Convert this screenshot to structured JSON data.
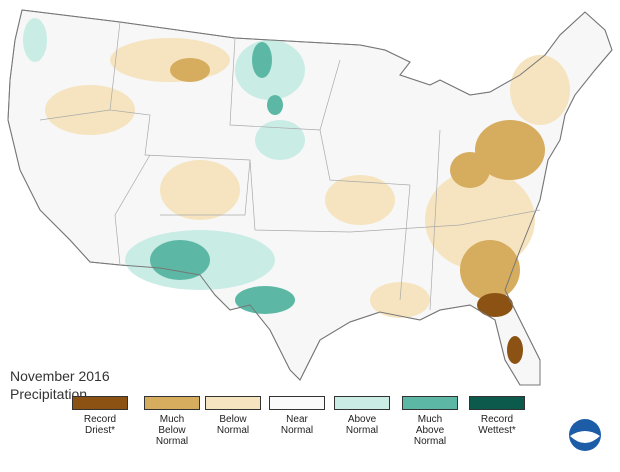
{
  "title": "November 2016",
  "subtitle": "Precipitation",
  "legend": [
    {
      "label": "Record Driest*",
      "color": "#8b5214"
    },
    {
      "label": "Much Below Normal",
      "color": "#d6ac5e"
    },
    {
      "label": "Below Normal",
      "color": "#f5e4bf"
    },
    {
      "label": "Near Normal",
      "color": "#fafafa"
    },
    {
      "label": "Above Normal",
      "color": "#c9ede5"
    },
    {
      "label": "Much Above Normal",
      "color": "#5cb8a5"
    },
    {
      "label": "Record Wettest*",
      "color": "#0c5a4b"
    }
  ]
}
